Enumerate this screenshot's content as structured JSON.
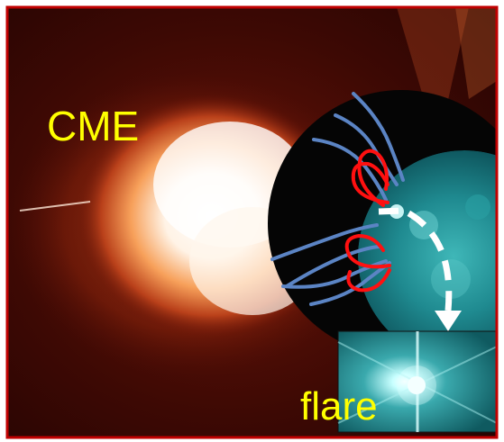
{
  "labels": {
    "cme": "CME",
    "flare": "flare"
  },
  "colors": {
    "frame_border": "#c00000",
    "corona_dark": "#3a0804",
    "cme_core": "#ffffff",
    "cme_glow": "#f08a3a",
    "occulter": "#050505",
    "sun_disk": "#1e8f95",
    "loop_open": "#5b84c4",
    "loop_closed": "#ff1010",
    "arrow": "#ffffff",
    "text": "#ffff00"
  }
}
